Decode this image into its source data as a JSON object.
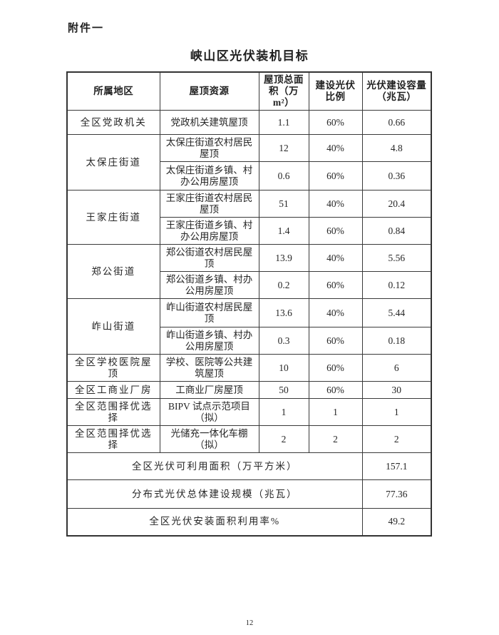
{
  "page": {
    "attachment_label": "附件一",
    "title": "峡山区光伏装机目标",
    "page_number": "12"
  },
  "table": {
    "columns": [
      "所属地区",
      "屋顶资源",
      "屋顶总面积（万m²）",
      "建设光伏比例",
      "光伏建设容量（兆瓦）"
    ],
    "rows": [
      {
        "region": "全区党政机关",
        "region_rowspan": 1,
        "resource": "党政机关建筑屋顶",
        "area": "1.1",
        "ratio": "60%",
        "capacity": "0.66"
      },
      {
        "region": "太保庄街道",
        "region_rowspan": 2,
        "resource": "太保庄街道农村居民屋顶",
        "area": "12",
        "ratio": "40%",
        "capacity": "4.8"
      },
      {
        "resource": "太保庄街道乡镇、村办公用房屋顶",
        "area": "0.6",
        "ratio": "60%",
        "capacity": "0.36"
      },
      {
        "region": "王家庄街道",
        "region_rowspan": 2,
        "resource": "王家庄街道农村居民屋顶",
        "area": "51",
        "ratio": "40%",
        "capacity": "20.4"
      },
      {
        "resource": "王家庄街道乡镇、村办公用房屋顶",
        "area": "1.4",
        "ratio": "60%",
        "capacity": "0.84"
      },
      {
        "region": "郑公街道",
        "region_rowspan": 2,
        "resource": "郑公街道农村居民屋顶",
        "area": "13.9",
        "ratio": "40%",
        "capacity": "5.56"
      },
      {
        "resource": "郑公街道乡镇、村办公用房屋顶",
        "area": "0.2",
        "ratio": "60%",
        "capacity": "0.12"
      },
      {
        "region": "岞山街道",
        "region_rowspan": 2,
        "resource": "岞山街道农村居民屋顶",
        "area": "13.6",
        "ratio": "40%",
        "capacity": "5.44"
      },
      {
        "resource": "岞山街道乡镇、村办公用房屋顶",
        "area": "0.3",
        "ratio": "60%",
        "capacity": "0.18"
      },
      {
        "region": "全区学校医院屋顶",
        "region_rowspan": 1,
        "resource": "学校、医院等公共建筑屋顶",
        "area": "10",
        "ratio": "60%",
        "capacity": "6"
      },
      {
        "region": "全区工商业厂房",
        "region_rowspan": 1,
        "resource": "工商业厂房屋顶",
        "area": "50",
        "ratio": "60%",
        "capacity": "30"
      },
      {
        "region": "全区范围择优选择",
        "region_rowspan": 1,
        "resource": "BIPV 试点示范项目（拟）",
        "area": "1",
        "ratio": "1",
        "capacity": "1"
      },
      {
        "region": "全区范围择优选择",
        "region_rowspan": 1,
        "resource": "光储充一体化车棚（拟）",
        "area": "2",
        "ratio": "2",
        "capacity": "2"
      }
    ],
    "summary_rows": [
      {
        "label": "全区光伏可利用面积（万平方米）",
        "value": "157.1"
      },
      {
        "label": "分布式光伏总体建设规模（兆瓦）",
        "value": "77.36"
      },
      {
        "label": "全区光伏安装面积利用率%",
        "value": "49.2"
      }
    ]
  }
}
